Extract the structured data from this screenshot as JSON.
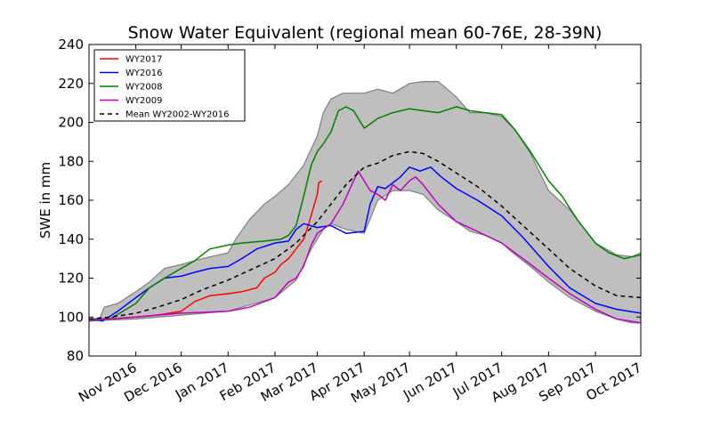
{
  "chart_data": {
    "type": "line",
    "title": "Snow Water Equivalent (regional mean 60-76E, 28-39N)",
    "ylabel": "SWE in mm",
    "xlabel": "",
    "ylim": [
      80,
      240
    ],
    "yticks": [
      80,
      100,
      120,
      140,
      160,
      180,
      200,
      220,
      240
    ],
    "xlim": [
      "2016-10-01",
      "2017-10-01"
    ],
    "xticks": [
      "Nov 2016",
      "Dec 2016",
      "Jan 2017",
      "Feb 2017",
      "Mar 2017",
      "Apr 2017",
      "May 2017",
      "Jun 2017",
      "Jul 2017",
      "Aug 2017",
      "Sep 2017",
      "Oct 2017"
    ],
    "xtick_dates": [
      "2016-11-01",
      "2016-12-01",
      "2017-01-01",
      "2017-02-01",
      "2017-03-01",
      "2017-04-01",
      "2017-05-01",
      "2017-06-01",
      "2017-07-01",
      "2017-08-01",
      "2017-09-01",
      "2017-10-01"
    ],
    "legend_position": "top-left",
    "grid": false,
    "band": {
      "color": "#bfbfbf",
      "edge_color": "#808080",
      "upper": [
        [
          "2016-10-01",
          99
        ],
        [
          "2016-10-08",
          99
        ],
        [
          "2016-10-11",
          105
        ],
        [
          "2016-10-20",
          107
        ],
        [
          "2016-11-01",
          113
        ],
        [
          "2016-11-10",
          118
        ],
        [
          "2016-11-20",
          125
        ],
        [
          "2016-12-01",
          127
        ],
        [
          "2016-12-15",
          130
        ],
        [
          "2017-01-01",
          133
        ],
        [
          "2017-01-06",
          140
        ],
        [
          "2017-01-15",
          150
        ],
        [
          "2017-01-25",
          158
        ],
        [
          "2017-02-01",
          162
        ],
        [
          "2017-02-10",
          168
        ],
        [
          "2017-02-20",
          178
        ],
        [
          "2017-03-01",
          193
        ],
        [
          "2017-03-05",
          205
        ],
        [
          "2017-03-10",
          212
        ],
        [
          "2017-03-18",
          215
        ],
        [
          "2017-04-01",
          215
        ],
        [
          "2017-04-10",
          217
        ],
        [
          "2017-04-20",
          215
        ],
        [
          "2017-05-01",
          220
        ],
        [
          "2017-05-10",
          221
        ],
        [
          "2017-05-20",
          221
        ],
        [
          "2017-06-01",
          213
        ],
        [
          "2017-06-10",
          205
        ],
        [
          "2017-06-20",
          205
        ],
        [
          "2017-07-01",
          203
        ],
        [
          "2017-07-10",
          196
        ],
        [
          "2017-07-20",
          184
        ],
        [
          "2017-08-01",
          165
        ],
        [
          "2017-08-15",
          155
        ],
        [
          "2017-09-01",
          138
        ],
        [
          "2017-09-15",
          132
        ],
        [
          "2017-09-25",
          131
        ],
        [
          "2017-10-01",
          133
        ]
      ],
      "lower": [
        [
          "2016-10-01",
          98
        ],
        [
          "2016-11-01",
          99
        ],
        [
          "2016-12-01",
          101
        ],
        [
          "2017-01-01",
          103
        ],
        [
          "2017-02-01",
          110
        ],
        [
          "2017-02-15",
          119
        ],
        [
          "2017-02-25",
          135
        ],
        [
          "2017-03-05",
          145
        ],
        [
          "2017-03-10",
          148
        ],
        [
          "2017-03-20",
          145
        ],
        [
          "2017-04-01",
          143
        ],
        [
          "2017-04-10",
          160
        ],
        [
          "2017-04-20",
          165
        ],
        [
          "2017-05-01",
          165
        ],
        [
          "2017-05-10",
          163
        ],
        [
          "2017-05-20",
          155
        ],
        [
          "2017-06-01",
          149
        ],
        [
          "2017-06-10",
          144
        ],
        [
          "2017-06-20",
          142
        ],
        [
          "2017-07-01",
          138
        ],
        [
          "2017-07-10",
          132
        ],
        [
          "2017-07-20",
          126
        ],
        [
          "2017-08-01",
          118
        ],
        [
          "2017-08-15",
          110
        ],
        [
          "2017-09-01",
          103
        ],
        [
          "2017-09-15",
          99
        ],
        [
          "2017-09-25",
          97
        ],
        [
          "2017-10-01",
          97
        ]
      ]
    },
    "series": [
      {
        "name": "WY2017",
        "color": "#ff0000",
        "dash": false,
        "points": [
          [
            "2016-10-01",
            99
          ],
          [
            "2016-10-15",
            99
          ],
          [
            "2016-11-01",
            100
          ],
          [
            "2016-11-15",
            101
          ],
          [
            "2016-12-01",
            103
          ],
          [
            "2016-12-10",
            108
          ],
          [
            "2016-12-20",
            111
          ],
          [
            "2017-01-01",
            112
          ],
          [
            "2017-01-10",
            113
          ],
          [
            "2017-01-20",
            115
          ],
          [
            "2017-01-25",
            120
          ],
          [
            "2017-02-01",
            123
          ],
          [
            "2017-02-05",
            127
          ],
          [
            "2017-02-10",
            130
          ],
          [
            "2017-02-15",
            135
          ],
          [
            "2017-02-20",
            140
          ],
          [
            "2017-02-23",
            147
          ],
          [
            "2017-02-26",
            155
          ],
          [
            "2017-03-01",
            163
          ],
          [
            "2017-03-02",
            169
          ],
          [
            "2017-03-04",
            170
          ]
        ]
      },
      {
        "name": "WY2016",
        "color": "#0000ff",
        "dash": false,
        "points": [
          [
            "2016-10-01",
            99
          ],
          [
            "2016-10-10",
            98
          ],
          [
            "2016-10-20",
            103
          ],
          [
            "2016-11-01",
            110
          ],
          [
            "2016-11-10",
            115
          ],
          [
            "2016-11-20",
            120
          ],
          [
            "2016-12-01",
            121
          ],
          [
            "2016-12-10",
            123
          ],
          [
            "2016-12-20",
            125
          ],
          [
            "2017-01-01",
            126
          ],
          [
            "2017-01-10",
            130
          ],
          [
            "2017-01-20",
            135
          ],
          [
            "2017-02-01",
            138
          ],
          [
            "2017-02-10",
            139
          ],
          [
            "2017-02-15",
            145
          ],
          [
            "2017-02-20",
            148
          ],
          [
            "2017-03-01",
            146
          ],
          [
            "2017-03-10",
            147
          ],
          [
            "2017-03-20",
            143
          ],
          [
            "2017-04-01",
            144
          ],
          [
            "2017-04-05",
            158
          ],
          [
            "2017-04-10",
            167
          ],
          [
            "2017-04-15",
            166
          ],
          [
            "2017-04-25",
            172
          ],
          [
            "2017-05-01",
            177
          ],
          [
            "2017-05-08",
            175
          ],
          [
            "2017-05-15",
            177
          ],
          [
            "2017-05-22",
            172
          ],
          [
            "2017-06-01",
            166
          ],
          [
            "2017-06-15",
            160
          ],
          [
            "2017-07-01",
            152
          ],
          [
            "2017-07-15",
            141
          ],
          [
            "2017-08-01",
            126
          ],
          [
            "2017-08-15",
            115
          ],
          [
            "2017-09-01",
            107
          ],
          [
            "2017-09-15",
            104
          ],
          [
            "2017-10-01",
            102
          ]
        ]
      },
      {
        "name": "WY2008",
        "color": "#007f00",
        "dash": false,
        "points": [
          [
            "2016-10-01",
            99
          ],
          [
            "2016-10-15",
            99
          ],
          [
            "2016-11-01",
            107
          ],
          [
            "2016-11-10",
            115
          ],
          [
            "2016-11-20",
            120
          ],
          [
            "2016-12-01",
            125
          ],
          [
            "2016-12-10",
            129
          ],
          [
            "2016-12-20",
            135
          ],
          [
            "2017-01-01",
            137
          ],
          [
            "2017-01-10",
            138
          ],
          [
            "2017-01-25",
            139
          ],
          [
            "2017-02-05",
            140
          ],
          [
            "2017-02-10",
            142
          ],
          [
            "2017-02-15",
            147
          ],
          [
            "2017-02-20",
            162
          ],
          [
            "2017-02-25",
            178
          ],
          [
            "2017-03-01",
            185
          ],
          [
            "2017-03-05",
            189
          ],
          [
            "2017-03-10",
            195
          ],
          [
            "2017-03-15",
            206
          ],
          [
            "2017-03-20",
            208
          ],
          [
            "2017-03-25",
            206
          ],
          [
            "2017-04-01",
            197
          ],
          [
            "2017-04-10",
            202
          ],
          [
            "2017-04-20",
            205
          ],
          [
            "2017-05-01",
            207
          ],
          [
            "2017-05-10",
            206
          ],
          [
            "2017-05-20",
            205
          ],
          [
            "2017-06-01",
            208
          ],
          [
            "2017-06-10",
            206
          ],
          [
            "2017-06-20",
            205
          ],
          [
            "2017-07-01",
            204
          ],
          [
            "2017-07-10",
            196
          ],
          [
            "2017-07-20",
            185
          ],
          [
            "2017-08-01",
            170
          ],
          [
            "2017-08-10",
            162
          ],
          [
            "2017-08-20",
            150
          ],
          [
            "2017-09-01",
            138
          ],
          [
            "2017-09-10",
            133
          ],
          [
            "2017-09-20",
            130
          ],
          [
            "2017-10-01",
            132
          ]
        ]
      },
      {
        "name": "WY2009",
        "color": "#bf00bf",
        "dash": false,
        "points": [
          [
            "2016-10-01",
            98
          ],
          [
            "2016-10-15",
            99
          ],
          [
            "2016-11-01",
            100
          ],
          [
            "2016-11-15",
            101
          ],
          [
            "2016-12-01",
            102
          ],
          [
            "2017-01-01",
            103
          ],
          [
            "2017-01-15",
            105
          ],
          [
            "2017-02-01",
            110
          ],
          [
            "2017-02-10",
            118
          ],
          [
            "2017-02-15",
            120
          ],
          [
            "2017-02-20",
            126
          ],
          [
            "2017-02-25",
            137
          ],
          [
            "2017-03-01",
            143
          ],
          [
            "2017-03-10",
            148
          ],
          [
            "2017-03-18",
            158
          ],
          [
            "2017-03-25",
            170
          ],
          [
            "2017-03-28",
            175
          ],
          [
            "2017-04-01",
            170
          ],
          [
            "2017-04-05",
            165
          ],
          [
            "2017-04-10",
            163
          ],
          [
            "2017-04-15",
            160
          ],
          [
            "2017-04-20",
            168
          ],
          [
            "2017-04-25",
            165
          ],
          [
            "2017-05-01",
            170
          ],
          [
            "2017-05-05",
            172
          ],
          [
            "2017-05-10",
            168
          ],
          [
            "2017-05-15",
            163
          ],
          [
            "2017-05-20",
            158
          ],
          [
            "2017-06-01",
            149
          ],
          [
            "2017-06-15",
            144
          ],
          [
            "2017-07-01",
            138
          ],
          [
            "2017-07-15",
            130
          ],
          [
            "2017-08-01",
            120
          ],
          [
            "2017-08-15",
            112
          ],
          [
            "2017-09-01",
            104
          ],
          [
            "2017-09-15",
            99
          ],
          [
            "2017-10-01",
            97
          ]
        ]
      },
      {
        "name": "Mean WY2002-WY2016",
        "color": "#000000",
        "dash": true,
        "points": [
          [
            "2016-10-01",
            99
          ],
          [
            "2016-10-15",
            100
          ],
          [
            "2016-11-01",
            102
          ],
          [
            "2016-11-15",
            105
          ],
          [
            "2016-12-01",
            109
          ],
          [
            "2016-12-15",
            114
          ],
          [
            "2017-01-01",
            119
          ],
          [
            "2017-01-15",
            124
          ],
          [
            "2017-02-01",
            130
          ],
          [
            "2017-02-15",
            138
          ],
          [
            "2017-03-01",
            149
          ],
          [
            "2017-03-10",
            158
          ],
          [
            "2017-03-20",
            168
          ],
          [
            "2017-04-01",
            177
          ],
          [
            "2017-04-10",
            179
          ],
          [
            "2017-04-20",
            183
          ],
          [
            "2017-05-01",
            185
          ],
          [
            "2017-05-10",
            184
          ],
          [
            "2017-05-20",
            180
          ],
          [
            "2017-06-01",
            174
          ],
          [
            "2017-06-15",
            167
          ],
          [
            "2017-07-01",
            157
          ],
          [
            "2017-07-15",
            147
          ],
          [
            "2017-08-01",
            135
          ],
          [
            "2017-08-15",
            125
          ],
          [
            "2017-09-01",
            116
          ],
          [
            "2017-09-15",
            111
          ],
          [
            "2017-10-01",
            110
          ]
        ]
      }
    ]
  }
}
